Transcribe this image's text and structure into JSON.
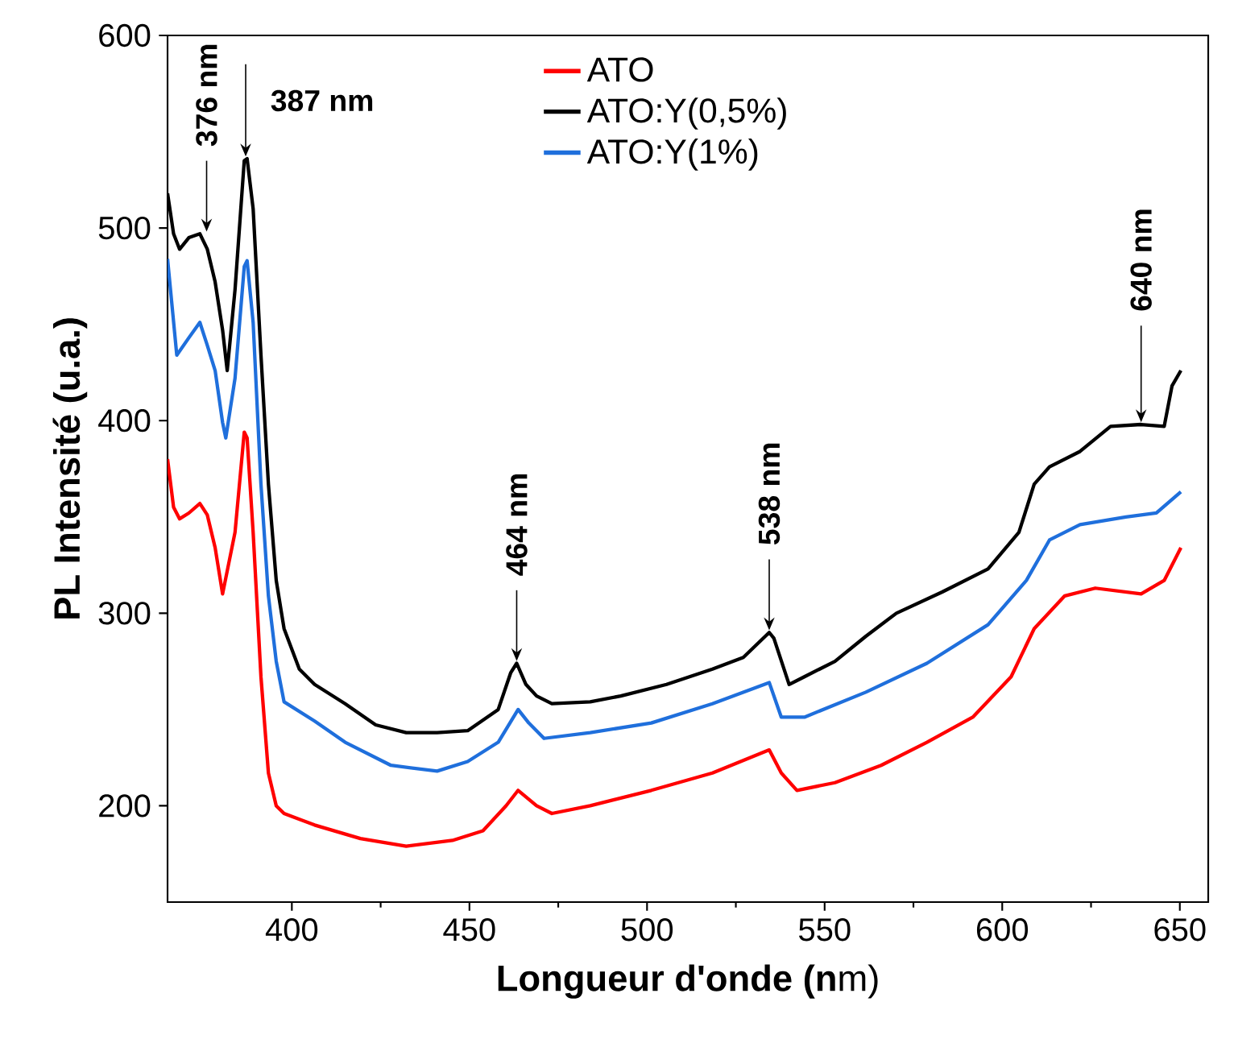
{
  "chart_data": {
    "type": "line",
    "xlabel": "**Longueur  d'onde (n**m)",
    "ylabel": "PL Intensité (u.a.)",
    "xlim": [
      365,
      658
    ],
    "ylim": [
      150,
      600
    ],
    "xticks": [
      400,
      450,
      500,
      550,
      600,
      650
    ],
    "yticks": [
      200,
      300,
      400,
      500,
      600
    ],
    "legend": "top",
    "grid": false,
    "marker": "none",
    "line_style": "solid",
    "series": [
      {
        "name": "ATO",
        "color": "#ff0000",
        "x": [
          365.0,
          366.7,
          368.4,
          371.0,
          374.1,
          376.2,
          378.4,
          380.5,
          384.0,
          386.6,
          387.4,
          389.1,
          391.3,
          393.4,
          395.6,
          397.8,
          406.4,
          419.3,
          432.2,
          445.2,
          453.8,
          460.3,
          463.7,
          468.9,
          473.2,
          484.0,
          501.2,
          518.4,
          534.4,
          537.8,
          542.2,
          552.9,
          565.9,
          578.8,
          591.7,
          602.5,
          609.0,
          617.6,
          626.2,
          639.1,
          645.6,
          650.3
        ],
        "values": [
          380,
          355,
          349,
          352,
          357,
          351,
          334,
          310,
          342,
          394,
          391,
          342,
          267,
          217,
          200,
          196,
          190,
          183,
          179,
          182,
          187,
          200,
          208,
          200,
          196,
          200,
          208,
          217,
          229,
          217,
          208,
          212,
          221,
          233,
          246,
          267,
          292,
          309,
          313,
          310,
          317,
          334
        ]
      },
      {
        "name": "ATO:Y(0,5%)",
        "color": "#000000",
        "x": [
          365.0,
          366.7,
          368.4,
          371.0,
          374.1,
          376.2,
          378.4,
          380.5,
          381.8,
          384.0,
          386.6,
          387.4,
          389.1,
          391.3,
          393.4,
          395.6,
          397.8,
          402.1,
          406.4,
          415.0,
          423.6,
          432.2,
          440.9,
          449.5,
          458.1,
          461.6,
          463.3,
          465.9,
          468.9,
          473.2,
          484.0,
          492.6,
          505.5,
          518.4,
          527.1,
          534.4,
          535.7,
          540.0,
          544.3,
          552.9,
          561.6,
          570.2,
          583.1,
          596.0,
          604.7,
          609.0,
          613.3,
          621.9,
          630.5,
          639.1,
          645.6,
          647.8,
          650.3
        ],
        "values": [
          518,
          497,
          489,
          495,
          497,
          489,
          472,
          447,
          426,
          468,
          535,
          536,
          510,
          434,
          367,
          317,
          292,
          271,
          263,
          253,
          242,
          238,
          238,
          239,
          250,
          269,
          274,
          263,
          257,
          253,
          254,
          257,
          263,
          271,
          277,
          290,
          287,
          263,
          267,
          275,
          288,
          300,
          311,
          323,
          342,
          367,
          376,
          384,
          397,
          398,
          397,
          418,
          426
        ]
      },
      {
        "name": "ATO:Y(1%)",
        "color": "#1f6fdc",
        "x": [
          365.0,
          367.6,
          371.0,
          374.1,
          376.2,
          378.4,
          380.5,
          381.4,
          384.0,
          386.6,
          387.4,
          389.1,
          391.3,
          393.4,
          395.6,
          397.8,
          406.4,
          415.0,
          427.9,
          440.9,
          449.5,
          458.1,
          463.7,
          466.7,
          471.0,
          484.0,
          501.2,
          518.4,
          534.4,
          537.8,
          544.3,
          561.6,
          578.8,
          596.0,
          606.8,
          613.3,
          621.9,
          634.8,
          643.4,
          650.3
        ],
        "values": [
          484,
          434,
          443,
          451,
          439,
          426,
          399,
          391,
          422,
          480,
          483,
          451,
          367,
          309,
          275,
          254,
          244,
          233,
          221,
          218,
          223,
          233,
          250,
          243,
          235,
          238,
          243,
          253,
          264,
          246,
          246,
          259,
          274,
          294,
          317,
          338,
          346,
          350,
          352,
          363
        ]
      }
    ],
    "annotations": [
      {
        "text": "376 nm",
        "x": 376,
        "y": 497
      },
      {
        "text": "387 nm",
        "x": 387,
        "y": 536
      },
      {
        "text": "464 nm",
        "x": 463.3,
        "y": 274
      },
      {
        "text": "538 nm",
        "x": 534.4,
        "y": 290
      },
      {
        "text": "640 nm",
        "x": 639.1,
        "y": 398
      }
    ]
  }
}
